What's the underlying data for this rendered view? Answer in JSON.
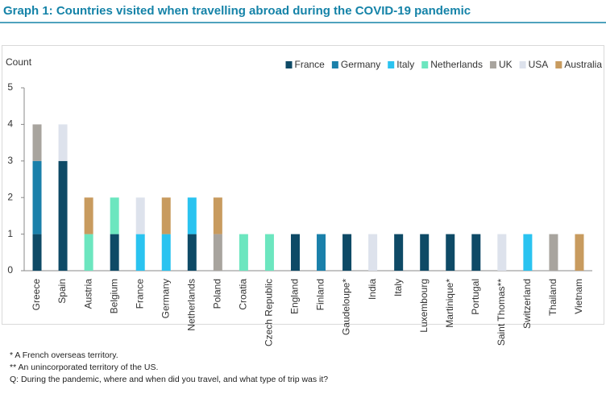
{
  "chart_data": {
    "type": "stacked_bar",
    "title": "Graph 1: Countries visited when travelling abroad during the COVID-19 pandemic",
    "y_label": "Count",
    "categories": [
      "Greece",
      "Spain",
      "Austria",
      "Belgium",
      "France",
      "Germany",
      "Netherlands",
      "Poland",
      "Croatia",
      "Czech Republic",
      "England",
      "Finland",
      "Gaudeloupe*",
      "India",
      "Italy",
      "Luxembourg",
      "Martinique*",
      "Portugal",
      "Saint Thomas**",
      "Switzerland",
      "Thailand",
      "Vietnam"
    ],
    "series": [
      {
        "name": "France",
        "color": "#0e4a66",
        "values": [
          1,
          3,
          null,
          1,
          null,
          null,
          1,
          null,
          null,
          null,
          1,
          null,
          1,
          null,
          1,
          1,
          1,
          1,
          null,
          null,
          null,
          null
        ]
      },
      {
        "name": "Germany",
        "color": "#1a80aa",
        "values": [
          2,
          null,
          null,
          null,
          null,
          null,
          null,
          null,
          null,
          null,
          null,
          1,
          null,
          null,
          null,
          null,
          null,
          null,
          null,
          null,
          null,
          null
        ]
      },
      {
        "name": "Italy",
        "color": "#2ac3f0",
        "values": [
          null,
          null,
          null,
          null,
          1,
          1,
          1,
          null,
          null,
          null,
          null,
          null,
          null,
          null,
          null,
          null,
          null,
          null,
          null,
          1,
          null,
          null
        ]
      },
      {
        "name": "Netherlands",
        "color": "#6ce6bf",
        "values": [
          null,
          null,
          1,
          1,
          null,
          null,
          null,
          null,
          1,
          1,
          null,
          null,
          null,
          null,
          null,
          null,
          null,
          null,
          null,
          null,
          null,
          null
        ]
      },
      {
        "name": "UK",
        "color": "#a8a49e",
        "values": [
          1,
          null,
          null,
          null,
          null,
          null,
          null,
          1,
          null,
          null,
          null,
          null,
          null,
          null,
          null,
          null,
          null,
          null,
          null,
          null,
          1,
          null
        ]
      },
      {
        "name": "USA",
        "color": "#dde2ec",
        "values": [
          null,
          1,
          null,
          null,
          1,
          null,
          null,
          null,
          null,
          null,
          null,
          null,
          null,
          1,
          null,
          null,
          null,
          null,
          1,
          null,
          null,
          null
        ]
      },
      {
        "name": "Australia",
        "color": "#c89b5f",
        "values": [
          null,
          null,
          1,
          null,
          null,
          1,
          null,
          1,
          null,
          null,
          null,
          null,
          null,
          null,
          null,
          null,
          null,
          null,
          null,
          null,
          null,
          1
        ]
      }
    ],
    "ylim": [
      0,
      5
    ],
    "yticks": [
      0,
      1,
      2,
      3,
      4,
      5
    ],
    "notes": [
      "* A French overseas territory.",
      "** An unincorporated territory of the US.",
      "Q: During the pandemic, where and when did you travel, and what type of trip was it?"
    ]
  }
}
